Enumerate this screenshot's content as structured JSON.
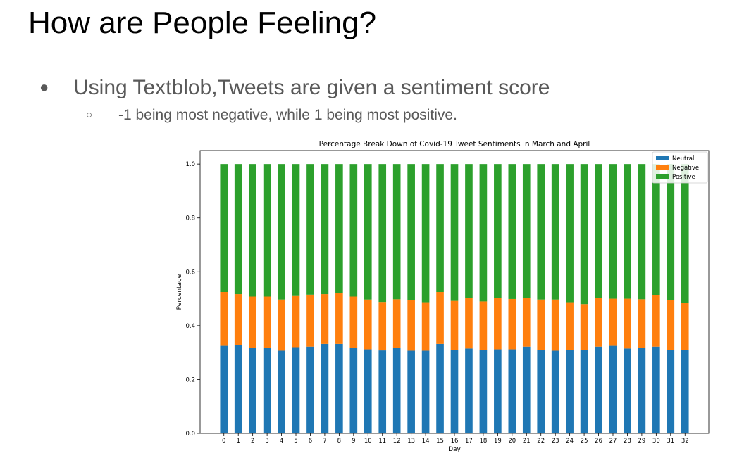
{
  "slide": {
    "title": "How are People Feeling?",
    "bullet1_mark": "●",
    "bullet1": "Using Textblob,Tweets are given a sentiment score",
    "bullet2_mark": "○",
    "bullet2": "-1 being most negative, while 1 being most positive."
  },
  "chart_data": {
    "type": "bar",
    "stacked": true,
    "title": "Percentage Break Down of Covid-19 Tweet Sentiments in March and April",
    "xlabel": "Day",
    "ylabel": "Percentage",
    "ylim": [
      0,
      1.05
    ],
    "yticks": [
      "0.0",
      "0.2",
      "0.4",
      "0.6",
      "0.8",
      "1.0"
    ],
    "grid": false,
    "legend_position": "top-right",
    "categories": [
      "0",
      "1",
      "2",
      "3",
      "4",
      "5",
      "6",
      "7",
      "8",
      "9",
      "10",
      "11",
      "12",
      "13",
      "14",
      "15",
      "16",
      "17",
      "18",
      "19",
      "20",
      "21",
      "22",
      "23",
      "24",
      "25",
      "26",
      "27",
      "28",
      "29",
      "30",
      "31",
      "32"
    ],
    "series": [
      {
        "name": "Neutral",
        "color": "#1f77b4",
        "values": [
          0.325,
          0.327,
          0.318,
          0.318,
          0.307,
          0.32,
          0.322,
          0.332,
          0.332,
          0.318,
          0.312,
          0.308,
          0.318,
          0.307,
          0.307,
          0.332,
          0.31,
          0.315,
          0.31,
          0.312,
          0.312,
          0.322,
          0.31,
          0.307,
          0.31,
          0.31,
          0.322,
          0.325,
          0.315,
          0.318,
          0.322,
          0.31,
          0.31
        ]
      },
      {
        "name": "Negative",
        "color": "#ff7f0e",
        "values": [
          0.2,
          0.19,
          0.19,
          0.19,
          0.19,
          0.19,
          0.193,
          0.185,
          0.19,
          0.19,
          0.185,
          0.18,
          0.18,
          0.188,
          0.18,
          0.193,
          0.182,
          0.187,
          0.18,
          0.19,
          0.187,
          0.18,
          0.187,
          0.19,
          0.177,
          0.17,
          0.18,
          0.175,
          0.185,
          0.18,
          0.19,
          0.185,
          0.175
        ]
      },
      {
        "name": "Positive",
        "color": "#2ca02c",
        "values": [
          0.475,
          0.483,
          0.492,
          0.492,
          0.503,
          0.49,
          0.485,
          0.483,
          0.478,
          0.492,
          0.503,
          0.512,
          0.502,
          0.505,
          0.513,
          0.475,
          0.508,
          0.498,
          0.51,
          0.498,
          0.501,
          0.498,
          0.503,
          0.503,
          0.513,
          0.52,
          0.498,
          0.5,
          0.5,
          0.502,
          0.488,
          0.505,
          0.515
        ]
      }
    ]
  }
}
